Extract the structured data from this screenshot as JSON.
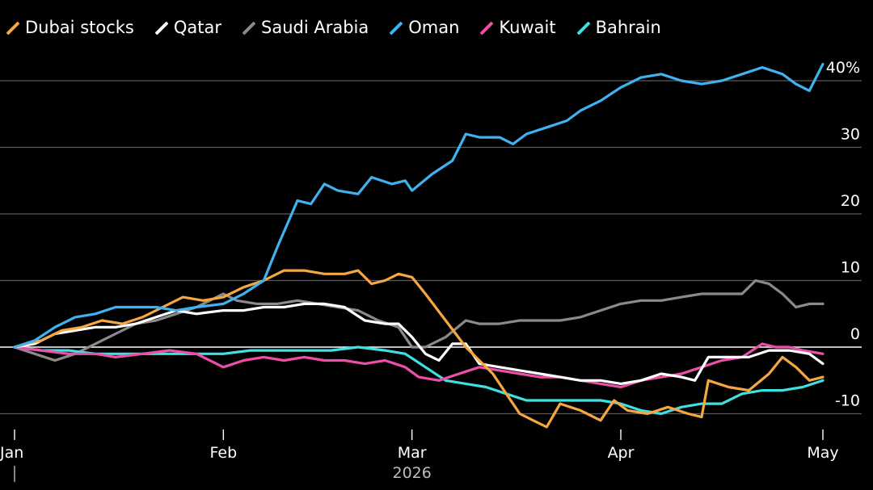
{
  "chart_data": {
    "type": "line",
    "y_unit": "%",
    "ylim": [
      -12,
      43
    ],
    "yticks": [
      {
        "value": 40,
        "label": "40%"
      },
      {
        "value": 30,
        "label": "30"
      },
      {
        "value": 20,
        "label": "20"
      },
      {
        "value": 10,
        "label": "10"
      },
      {
        "value": 0,
        "label": "0"
      },
      {
        "value": -10,
        "label": "-10"
      }
    ],
    "xticks": [
      {
        "value": "2026-01-01",
        "label": "Jan"
      },
      {
        "value": "2026-02-01",
        "label": "Feb"
      },
      {
        "value": "2026-03-01",
        "label": "Mar"
      },
      {
        "value": "2026-04-01",
        "label": "Apr"
      },
      {
        "value": "2026-05-01",
        "label": "May"
      }
    ],
    "xlim": [
      "2026-01-01",
      "2026-05-01"
    ],
    "year_label": "2026",
    "grid": true,
    "legend": "top-left",
    "series": [
      {
        "name": "Dubai stocks",
        "color": "#f5a742",
        "points": [
          [
            "2026-01-01",
            0
          ],
          [
            "2026-01-03",
            0.6
          ],
          [
            "2026-01-05",
            1
          ],
          [
            "2026-01-08",
            2.5
          ],
          [
            "2026-01-11",
            3
          ],
          [
            "2026-01-14",
            4
          ],
          [
            "2026-01-17",
            3.5
          ],
          [
            "2026-01-20",
            4.5
          ],
          [
            "2026-01-23",
            6
          ],
          [
            "2026-01-26",
            7.5
          ],
          [
            "2026-01-29",
            7
          ],
          [
            "2026-02-01",
            7.5
          ],
          [
            "2026-02-04",
            9
          ],
          [
            "2026-02-07",
            10
          ],
          [
            "2026-02-10",
            11.5
          ],
          [
            "2026-02-13",
            11.5
          ],
          [
            "2026-02-16",
            11
          ],
          [
            "2026-02-19",
            11
          ],
          [
            "2026-02-21",
            11.5
          ],
          [
            "2026-02-23",
            9.5
          ],
          [
            "2026-02-25",
            10
          ],
          [
            "2026-02-27",
            11
          ],
          [
            "2026-03-01",
            10.5
          ],
          [
            "2026-03-03",
            8
          ],
          [
            "2026-03-06",
            4
          ],
          [
            "2026-03-09",
            0
          ],
          [
            "2026-03-11",
            -2
          ],
          [
            "2026-03-13",
            -4
          ],
          [
            "2026-03-15",
            -7
          ],
          [
            "2026-03-17",
            -10
          ],
          [
            "2026-03-19",
            -11
          ],
          [
            "2026-03-21",
            -12
          ],
          [
            "2026-03-23",
            -8.5
          ],
          [
            "2026-03-26",
            -9.5
          ],
          [
            "2026-03-29",
            -11
          ],
          [
            "2026-03-31",
            -8
          ],
          [
            "2026-04-02",
            -9.5
          ],
          [
            "2026-04-05",
            -10
          ],
          [
            "2026-04-08",
            -9
          ],
          [
            "2026-04-11",
            -10
          ],
          [
            "2026-04-13",
            -10.5
          ],
          [
            "2026-04-14",
            -5
          ],
          [
            "2026-04-17",
            -6
          ],
          [
            "2026-04-20",
            -6.5
          ],
          [
            "2026-04-23",
            -4
          ],
          [
            "2026-04-25",
            -1.5
          ],
          [
            "2026-04-27",
            -3
          ],
          [
            "2026-04-29",
            -5
          ],
          [
            "2026-05-01",
            -4.5
          ]
        ]
      },
      {
        "name": "Qatar",
        "color": "#ffffff",
        "points": [
          [
            "2026-01-01",
            0
          ],
          [
            "2026-01-04",
            0.5
          ],
          [
            "2026-01-07",
            2
          ],
          [
            "2026-01-10",
            2.5
          ],
          [
            "2026-01-13",
            3
          ],
          [
            "2026-01-16",
            3
          ],
          [
            "2026-01-19",
            3.5
          ],
          [
            "2026-01-22",
            4.5
          ],
          [
            "2026-01-25",
            5.5
          ],
          [
            "2026-01-28",
            5
          ],
          [
            "2026-02-01",
            5.5
          ],
          [
            "2026-02-04",
            5.5
          ],
          [
            "2026-02-07",
            6
          ],
          [
            "2026-02-10",
            6
          ],
          [
            "2026-02-13",
            6.5
          ],
          [
            "2026-02-16",
            6.5
          ],
          [
            "2026-02-19",
            6
          ],
          [
            "2026-02-22",
            4
          ],
          [
            "2026-02-25",
            3.5
          ],
          [
            "2026-02-27",
            3.5
          ],
          [
            "2026-03-01",
            1.5
          ],
          [
            "2026-03-03",
            -1
          ],
          [
            "2026-03-05",
            -2
          ],
          [
            "2026-03-07",
            0.5
          ],
          [
            "2026-03-09",
            0.5
          ],
          [
            "2026-03-11",
            -2.5
          ],
          [
            "2026-03-14",
            -3
          ],
          [
            "2026-03-17",
            -3.5
          ],
          [
            "2026-03-20",
            -4
          ],
          [
            "2026-03-23",
            -4.5
          ],
          [
            "2026-03-26",
            -5
          ],
          [
            "2026-03-29",
            -5
          ],
          [
            "2026-04-01",
            -5.5
          ],
          [
            "2026-04-04",
            -5
          ],
          [
            "2026-04-07",
            -4
          ],
          [
            "2026-04-10",
            -4.5
          ],
          [
            "2026-04-12",
            -5
          ],
          [
            "2026-04-14",
            -1.5
          ],
          [
            "2026-04-17",
            -1.5
          ],
          [
            "2026-04-20",
            -1.5
          ],
          [
            "2026-04-23",
            -0.5
          ],
          [
            "2026-04-26",
            -0.5
          ],
          [
            "2026-04-29",
            -1
          ],
          [
            "2026-05-01",
            -2.5
          ]
        ]
      },
      {
        "name": "Saudi Arabia",
        "color": "#8a8a8a",
        "points": [
          [
            "2026-01-01",
            0
          ],
          [
            "2026-01-04",
            -1
          ],
          [
            "2026-01-07",
            -2
          ],
          [
            "2026-01-10",
            -1
          ],
          [
            "2026-01-13",
            0.5
          ],
          [
            "2026-01-16",
            2
          ],
          [
            "2026-01-19",
            3.5
          ],
          [
            "2026-01-22",
            4
          ],
          [
            "2026-01-25",
            5
          ],
          [
            "2026-01-28",
            6
          ],
          [
            "2026-02-01",
            8
          ],
          [
            "2026-02-03",
            7
          ],
          [
            "2026-02-06",
            6.5
          ],
          [
            "2026-02-09",
            6.5
          ],
          [
            "2026-02-12",
            7
          ],
          [
            "2026-02-15",
            6.5
          ],
          [
            "2026-02-18",
            6
          ],
          [
            "2026-02-21",
            5.5
          ],
          [
            "2026-02-24",
            4
          ],
          [
            "2026-02-27",
            3
          ],
          [
            "2026-03-01",
            0
          ],
          [
            "2026-03-03",
            0
          ],
          [
            "2026-03-06",
            1.5
          ],
          [
            "2026-03-09",
            4
          ],
          [
            "2026-03-11",
            3.5
          ],
          [
            "2026-03-14",
            3.5
          ],
          [
            "2026-03-17",
            4
          ],
          [
            "2026-03-20",
            4
          ],
          [
            "2026-03-23",
            4
          ],
          [
            "2026-03-26",
            4.5
          ],
          [
            "2026-03-29",
            5.5
          ],
          [
            "2026-04-01",
            6.5
          ],
          [
            "2026-04-04",
            7
          ],
          [
            "2026-04-07",
            7
          ],
          [
            "2026-04-10",
            7.5
          ],
          [
            "2026-04-13",
            8
          ],
          [
            "2026-04-16",
            8
          ],
          [
            "2026-04-19",
            8
          ],
          [
            "2026-04-21",
            10
          ],
          [
            "2026-04-23",
            9.5
          ],
          [
            "2026-04-25",
            8
          ],
          [
            "2026-04-27",
            6
          ],
          [
            "2026-04-29",
            6.5
          ],
          [
            "2026-05-01",
            6.5
          ]
        ]
      },
      {
        "name": "Oman",
        "color": "#3fb2ef",
        "points": [
          [
            "2026-01-01",
            0
          ],
          [
            "2026-01-04",
            1
          ],
          [
            "2026-01-07",
            3
          ],
          [
            "2026-01-10",
            4.5
          ],
          [
            "2026-01-13",
            5
          ],
          [
            "2026-01-16",
            6
          ],
          [
            "2026-01-19",
            6
          ],
          [
            "2026-01-22",
            6
          ],
          [
            "2026-01-25",
            5.5
          ],
          [
            "2026-01-28",
            6
          ],
          [
            "2026-02-01",
            6.5
          ],
          [
            "2026-02-04",
            8
          ],
          [
            "2026-02-07",
            10
          ],
          [
            "2026-02-09",
            15
          ],
          [
            "2026-02-12",
            22
          ],
          [
            "2026-02-14",
            21.5
          ],
          [
            "2026-02-16",
            24.5
          ],
          [
            "2026-02-18",
            23.5
          ],
          [
            "2026-02-21",
            23
          ],
          [
            "2026-02-23",
            25.5
          ],
          [
            "2026-02-26",
            24.5
          ],
          [
            "2026-02-28",
            25
          ],
          [
            "2026-03-01",
            23.5
          ],
          [
            "2026-03-04",
            26
          ],
          [
            "2026-03-07",
            28
          ],
          [
            "2026-03-09",
            32
          ],
          [
            "2026-03-11",
            31.5
          ],
          [
            "2026-03-14",
            31.5
          ],
          [
            "2026-03-16",
            30.5
          ],
          [
            "2026-03-18",
            32
          ],
          [
            "2026-03-21",
            33
          ],
          [
            "2026-03-24",
            34
          ],
          [
            "2026-03-26",
            35.5
          ],
          [
            "2026-03-29",
            37
          ],
          [
            "2026-04-01",
            39
          ],
          [
            "2026-04-04",
            40.5
          ],
          [
            "2026-04-07",
            41
          ],
          [
            "2026-04-10",
            40
          ],
          [
            "2026-04-13",
            39.5
          ],
          [
            "2026-04-16",
            40
          ],
          [
            "2026-04-19",
            41
          ],
          [
            "2026-04-22",
            42
          ],
          [
            "2026-04-25",
            41
          ],
          [
            "2026-04-27",
            39.5
          ],
          [
            "2026-04-29",
            38.5
          ],
          [
            "2026-05-01",
            42.5
          ]
        ]
      },
      {
        "name": "Kuwait",
        "color": "#ec4fa8",
        "points": [
          [
            "2026-01-01",
            0
          ],
          [
            "2026-01-05",
            -0.5
          ],
          [
            "2026-01-09",
            -1
          ],
          [
            "2026-01-13",
            -1
          ],
          [
            "2026-01-16",
            -1.5
          ],
          [
            "2026-01-20",
            -1
          ],
          [
            "2026-01-24",
            -0.5
          ],
          [
            "2026-01-28",
            -1
          ],
          [
            "2026-02-01",
            -3
          ],
          [
            "2026-02-04",
            -2
          ],
          [
            "2026-02-07",
            -1.5
          ],
          [
            "2026-02-10",
            -2
          ],
          [
            "2026-02-13",
            -1.5
          ],
          [
            "2026-02-16",
            -2
          ],
          [
            "2026-02-19",
            -2
          ],
          [
            "2026-02-22",
            -2.5
          ],
          [
            "2026-02-25",
            -2
          ],
          [
            "2026-02-28",
            -3
          ],
          [
            "2026-03-02",
            -4.5
          ],
          [
            "2026-03-05",
            -5
          ],
          [
            "2026-03-08",
            -4
          ],
          [
            "2026-03-11",
            -3
          ],
          [
            "2026-03-14",
            -3.5
          ],
          [
            "2026-03-17",
            -4
          ],
          [
            "2026-03-20",
            -4.5
          ],
          [
            "2026-03-23",
            -4.5
          ],
          [
            "2026-03-26",
            -5
          ],
          [
            "2026-03-29",
            -5.5
          ],
          [
            "2026-04-01",
            -6
          ],
          [
            "2026-04-04",
            -5
          ],
          [
            "2026-04-07",
            -4.5
          ],
          [
            "2026-04-10",
            -4
          ],
          [
            "2026-04-13",
            -3
          ],
          [
            "2026-04-16",
            -2
          ],
          [
            "2026-04-19",
            -1.5
          ],
          [
            "2026-04-22",
            0.5
          ],
          [
            "2026-04-24",
            0
          ],
          [
            "2026-04-26",
            0
          ],
          [
            "2026-04-28",
            -0.5
          ],
          [
            "2026-05-01",
            -1
          ]
        ]
      },
      {
        "name": "Bahrain",
        "color": "#3fe0e0",
        "points": [
          [
            "2026-01-01",
            0
          ],
          [
            "2026-01-05",
            -0.5
          ],
          [
            "2026-01-09",
            -0.5
          ],
          [
            "2026-01-13",
            -1
          ],
          [
            "2026-01-17",
            -1
          ],
          [
            "2026-01-21",
            -1
          ],
          [
            "2026-01-25",
            -1
          ],
          [
            "2026-01-29",
            -1
          ],
          [
            "2026-02-01",
            -1
          ],
          [
            "2026-02-05",
            -0.5
          ],
          [
            "2026-02-09",
            -0.5
          ],
          [
            "2026-02-13",
            -0.5
          ],
          [
            "2026-02-17",
            -0.5
          ],
          [
            "2026-02-21",
            0
          ],
          [
            "2026-02-25",
            -0.5
          ],
          [
            "2026-02-28",
            -1
          ],
          [
            "2026-03-03",
            -3
          ],
          [
            "2026-03-06",
            -5
          ],
          [
            "2026-03-09",
            -5.5
          ],
          [
            "2026-03-12",
            -6
          ],
          [
            "2026-03-15",
            -7
          ],
          [
            "2026-03-18",
            -8
          ],
          [
            "2026-03-21",
            -8
          ],
          [
            "2026-03-25",
            -8
          ],
          [
            "2026-03-29",
            -8
          ],
          [
            "2026-04-01",
            -8.5
          ],
          [
            "2026-04-04",
            -9.5
          ],
          [
            "2026-04-07",
            -10
          ],
          [
            "2026-04-10",
            -9
          ],
          [
            "2026-04-13",
            -8.5
          ],
          [
            "2026-04-16",
            -8.5
          ],
          [
            "2026-04-19",
            -7
          ],
          [
            "2026-04-22",
            -6.5
          ],
          [
            "2026-04-25",
            -6.5
          ],
          [
            "2026-04-28",
            -6
          ],
          [
            "2026-05-01",
            -5
          ]
        ]
      }
    ]
  }
}
